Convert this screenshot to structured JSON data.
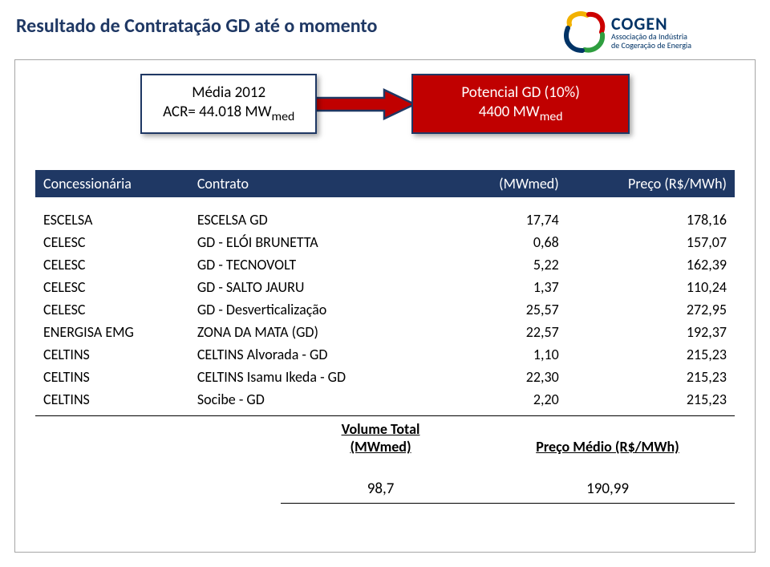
{
  "title": "Resultado de Contratação GD até o momento",
  "logo": {
    "name": "COGEN",
    "sub1": "Associação da Indústria",
    "sub2": "de Cogeração de Energia",
    "colors": {
      "blue": "#003366",
      "yellow": "#f2b100",
      "red": "#cc0000",
      "green": "#2e9e3f"
    }
  },
  "box_left": {
    "line1": "Média 2012",
    "line2": "ACR= 44.018 MW",
    "sub": "med"
  },
  "box_right": {
    "line1": "Potencial GD (10%)",
    "line2": "4400 MW",
    "sub": "med"
  },
  "arrow": {
    "fill": "#c00000",
    "border": "#1f3864"
  },
  "table": {
    "headers": [
      "Concessionária",
      "Contrato",
      "(MWmed)",
      "Preço (R$/MWh)"
    ],
    "rows": [
      [
        "ESCELSA",
        "ESCELSA GD",
        "17,74",
        "178,16"
      ],
      [
        "CELESC",
        "GD - ELÓI BRUNETTA",
        "0,68",
        "157,07"
      ],
      [
        "CELESC",
        "GD - TECNOVOLT",
        "5,22",
        "162,39"
      ],
      [
        "CELESC",
        "GD - SALTO JAURU",
        "1,37",
        "110,24"
      ],
      [
        "CELESC",
        "GD - Desverticalização",
        "25,57",
        "272,95"
      ],
      [
        "ENERGISA EMG",
        "ZONA DA MATA (GD)",
        "22,57",
        "192,37"
      ],
      [
        "CELTINS",
        "CELTINS Alvorada - GD",
        "1,10",
        "215,23"
      ],
      [
        "CELTINS",
        "CELTINS Isamu Ikeda - GD",
        "22,30",
        "215,23"
      ],
      [
        "CELTINS",
        "Socibe - GD",
        "2,20",
        "215,23"
      ]
    ]
  },
  "summary": {
    "head1_l1": "Volume Total",
    "head1_l2": "(MWmed)",
    "head2": "Preço Médio (R$/MWh)",
    "val1": "98,7",
    "val2": "190,99"
  },
  "colors": {
    "title": "#1f3864",
    "frame": "#a6a6a6",
    "header_bg": "#1f3864",
    "header_fg": "#ffffff",
    "box_border": "#1f3864",
    "box_right_bg": "#c00000"
  }
}
